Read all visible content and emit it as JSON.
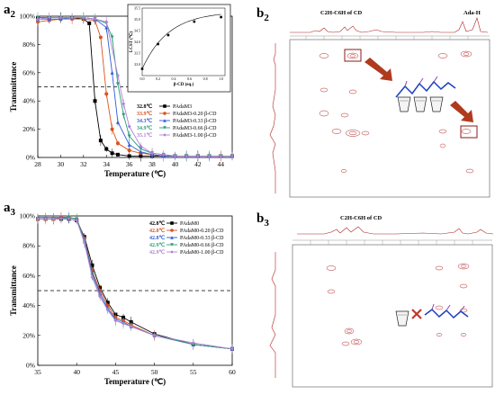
{
  "panels": {
    "a2": {
      "letter": "a",
      "sub": "2"
    },
    "a3": {
      "letter": "a",
      "sub": "3"
    },
    "b2": {
      "letter": "b",
      "sub": "2"
    },
    "b3": {
      "letter": "b",
      "sub": "3"
    }
  },
  "nmr_b2": {
    "top_label_left": "C2H-C6H of CD",
    "top_label_right": "Ada-H"
  },
  "nmr_b3": {
    "top_label": "C2H-C6H of CD"
  },
  "colors": {
    "PAdaM": "#000000",
    "cd020": "#d9531e",
    "cd033": "#2f5bd6",
    "cd066": "#2a9d78",
    "cd100": "#b07fd8",
    "nmr": "#b22222",
    "arrow": "#b03a1e"
  },
  "chart_data": [
    {
      "id": "a2",
      "type": "line",
      "xlabel": "Temperature (℃)",
      "ylabel": "Transmittance",
      "xlim": [
        28,
        45
      ],
      "ylim": [
        0,
        100
      ],
      "xticks": [
        28,
        30,
        32,
        34,
        36,
        38,
        40,
        42,
        44
      ],
      "yticks": [
        0,
        20,
        40,
        60,
        80,
        100
      ],
      "ytick_labels": [
        "0%",
        "20%",
        "40%",
        "60%",
        "80%",
        "100%"
      ],
      "dashed_y": 50,
      "legend_position": "right",
      "series": [
        {
          "name": "PAdaM3",
          "lcst": "32.8℃",
          "x": [
            28,
            29,
            30,
            31,
            32,
            32.5,
            33,
            33.5,
            34,
            34.5,
            35,
            36,
            37,
            38,
            39,
            40,
            41,
            42,
            43,
            44,
            45
          ],
          "y": [
            99,
            99,
            99,
            99,
            98,
            95,
            40,
            12,
            6,
            3,
            2,
            1,
            1,
            1,
            1,
            1,
            1,
            1,
            1,
            1,
            1
          ]
        },
        {
          "name": "PAdaM3-0.20 β-CD",
          "lcst": "33.9℃",
          "x": [
            28,
            29,
            30,
            31,
            32,
            33,
            33.5,
            34,
            34.5,
            35,
            36,
            37,
            38,
            39,
            40,
            41,
            42,
            43,
            44,
            45
          ],
          "y": [
            96,
            97,
            98,
            98,
            98,
            97,
            85,
            45,
            20,
            10,
            5,
            3,
            2,
            1,
            1,
            1,
            1,
            1,
            1,
            1
          ]
        },
        {
          "name": "PAdaM3-0.33 β-CD",
          "lcst": "34.3℃",
          "x": [
            28,
            29,
            30,
            31,
            32,
            33,
            34,
            34.5,
            35,
            36,
            37,
            38,
            39,
            40,
            41,
            42,
            43,
            44,
            45
          ],
          "y": [
            98,
            98,
            98,
            99,
            99,
            98,
            92,
            60,
            25,
            9,
            4,
            2,
            1,
            1,
            1,
            1,
            1,
            1,
            1
          ]
        },
        {
          "name": "PAdaM3-0.66 β-CD",
          "lcst": "34.9℃",
          "x": [
            28,
            29,
            30,
            31,
            32,
            33,
            34,
            34.5,
            35,
            35.5,
            36,
            37,
            38,
            39,
            40,
            41,
            42,
            43,
            44,
            45
          ],
          "y": [
            99,
            99,
            99,
            99,
            99,
            98,
            95,
            85,
            52,
            30,
            15,
            6,
            3,
            2,
            1,
            1,
            1,
            1,
            1,
            1
          ]
        },
        {
          "name": "PAdaM3-1.00 β-CD",
          "lcst": "35.1℃",
          "x": [
            28,
            29,
            30,
            31,
            32,
            33,
            34,
            35,
            35.5,
            36,
            37,
            38,
            39,
            40,
            41,
            42,
            43,
            44,
            45
          ],
          "y": [
            98,
            99,
            99,
            99,
            99,
            98,
            96,
            58,
            38,
            22,
            8,
            3,
            2,
            1,
            1,
            1,
            1,
            1,
            1
          ]
        }
      ],
      "inset": {
        "type": "line",
        "xlabel": "β-CD (eq.)",
        "ylabel": "LCST (℃)",
        "xlim": [
          0,
          1.05
        ],
        "ylim": [
          32.5,
          35.5
        ],
        "xticks": [
          0.0,
          0.2,
          0.4,
          0.6,
          0.8,
          1.0
        ],
        "xtick_labels": [
          "0.0",
          "0.2",
          "0.4",
          "0.6",
          "0.8",
          "1.0"
        ],
        "yticks": [
          33.0,
          33.5,
          34.0,
          34.5,
          35.0,
          35.5
        ],
        "ytick_labels": [
          "33.0",
          "33.5",
          "34.0",
          "34.5",
          "35.0",
          "35.5"
        ],
        "x": [
          0,
          0.2,
          0.33,
          0.66,
          1.0
        ],
        "y": [
          32.8,
          33.9,
          34.3,
          34.9,
          35.1
        ]
      }
    },
    {
      "id": "a3",
      "type": "line",
      "xlabel": "Temperature (℃)",
      "ylabel": "Transmittance",
      "xlim": [
        35,
        60
      ],
      "ylim": [
        0,
        100
      ],
      "xticks": [
        35,
        40,
        45,
        50,
        55,
        60
      ],
      "yticks": [
        0,
        20,
        40,
        60,
        80,
        100
      ],
      "ytick_labels": [
        "0%",
        "20%",
        "40%",
        "60%",
        "80%",
        "100%"
      ],
      "dashed_y": 50,
      "legend_position": "top-right",
      "series": [
        {
          "name": "PAdaM0",
          "lcst": "42.8℃",
          "x": [
            35,
            36,
            37,
            38,
            39,
            40,
            41,
            42,
            43,
            44,
            45,
            46,
            47,
            50,
            55,
            60
          ],
          "y": [
            98,
            98,
            98,
            98,
            98,
            97,
            86,
            67,
            52,
            42,
            34,
            32,
            29,
            21,
            14,
            11
          ]
        },
        {
          "name": "PAdaM0-0.20 β-CD",
          "lcst": "42.8℃",
          "x": [
            35,
            36,
            37,
            38,
            39,
            40,
            41,
            42,
            43,
            44,
            45,
            46,
            47,
            50,
            55,
            60
          ],
          "y": [
            98,
            98,
            98,
            99,
            99,
            98,
            85,
            63,
            50,
            40,
            32,
            30,
            27,
            20,
            14,
            11
          ]
        },
        {
          "name": "PAdaM0-0.33 β-CD",
          "lcst": "42.8℃",
          "x": [
            35,
            36,
            37,
            38,
            39,
            40,
            41,
            42,
            43,
            44,
            45,
            46,
            47,
            50,
            55,
            60
          ],
          "y": [
            99,
            99,
            99,
            99,
            99,
            98,
            84,
            62,
            48,
            38,
            31,
            29,
            26,
            20,
            14,
            11
          ]
        },
        {
          "name": "PAdaM0-0.66 β-CD",
          "lcst": "42.9℃",
          "x": [
            35,
            36,
            37,
            38,
            39,
            40,
            41,
            42,
            43,
            44,
            45,
            46,
            47,
            50,
            55,
            60
          ],
          "y": [
            98,
            98,
            98,
            98,
            99,
            98,
            83,
            60,
            46,
            37,
            30,
            28,
            26,
            20,
            14,
            11
          ]
        },
        {
          "name": "PAdaM0-1.00 β-CD",
          "lcst": "42.9℃",
          "x": [
            35,
            36,
            37,
            38,
            39,
            40,
            41,
            42,
            43,
            44,
            45,
            46,
            47,
            50,
            55,
            60
          ],
          "y": [
            98,
            98,
            98,
            98,
            98,
            97,
            82,
            59,
            46,
            37,
            30,
            28,
            26,
            20,
            15,
            11
          ]
        }
      ]
    }
  ]
}
